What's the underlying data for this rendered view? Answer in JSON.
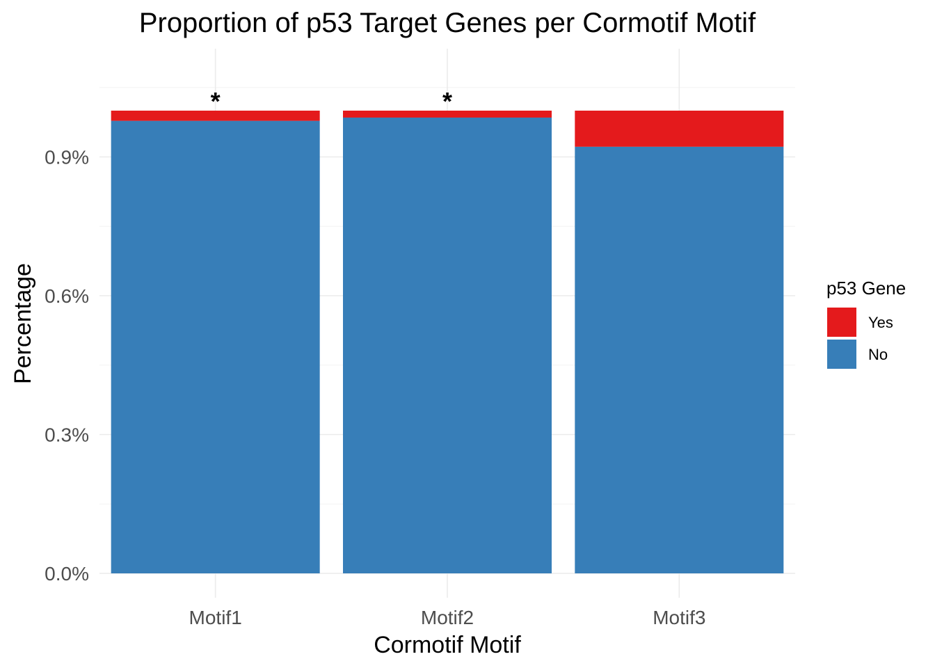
{
  "chart_data": {
    "type": "bar",
    "stacked": true,
    "title": "Proportion of p53 Target Genes per Cormotif Motif",
    "xlabel": "Cormotif Motif",
    "ylabel": "Percentage",
    "categories": [
      "Motif1",
      "Motif2",
      "Motif3"
    ],
    "series": [
      {
        "name": "No",
        "values": [
          0.978,
          0.985,
          0.922
        ],
        "color": "#377EB8"
      },
      {
        "name": "Yes",
        "values": [
          0.022,
          0.015,
          0.078
        ],
        "color": "#E41A1C"
      }
    ],
    "y_ticks": [
      0,
      0.3,
      0.6,
      0.9
    ],
    "y_tick_labels": [
      "0.0%",
      "0.3%",
      "0.6%",
      "0.9%"
    ],
    "ylim": [
      0,
      1.0
    ],
    "annotations": [
      {
        "category": "Motif1",
        "text": "*"
      },
      {
        "category": "Motif2",
        "text": "*"
      }
    ],
    "legend": {
      "title": "p53 Gene",
      "position": "right",
      "items": [
        {
          "label": "Yes",
          "color": "#E41A1C"
        },
        {
          "label": "No",
          "color": "#377EB8"
        }
      ]
    },
    "grid": true
  }
}
